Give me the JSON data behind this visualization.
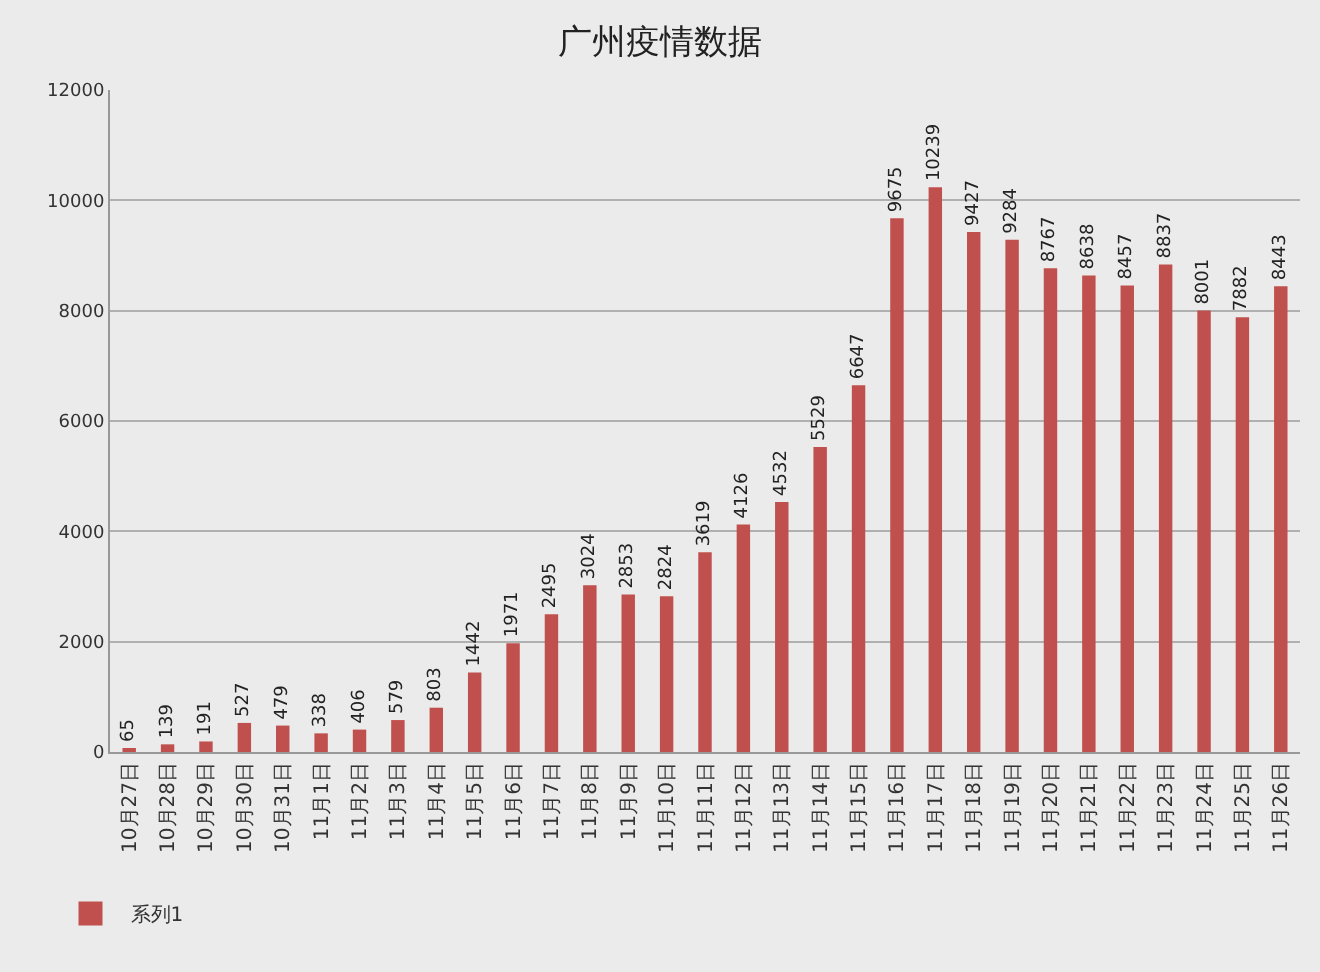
{
  "chart_data": {
    "type": "bar",
    "title": "广州疫情数据",
    "categories": [
      "10月27日",
      "10月28日",
      "10月29日",
      "10月30日",
      "10月31日",
      "11月1日",
      "11月2日",
      "11月3日",
      "11月4日",
      "11月5日",
      "11月6日",
      "11月7日",
      "11月8日",
      "11月9日",
      "11月10日",
      "11月11日",
      "11月12日",
      "11月13日",
      "11月14日",
      "11月15日",
      "11月16日",
      "11月17日",
      "11月18日",
      "11月19日",
      "11月20日",
      "11月21日",
      "11月22日",
      "11月23日",
      "11月24日",
      "11月25日",
      "11月26日"
    ],
    "series": [
      {
        "name": "系列1",
        "color": "#c0504d",
        "values": [
          65,
          139,
          191,
          527,
          479,
          338,
          406,
          579,
          803,
          1442,
          1971,
          2495,
          3024,
          2853,
          2824,
          3619,
          4126,
          4532,
          5529,
          6647,
          9675,
          10239,
          9427,
          9284,
          8767,
          8638,
          8457,
          8837,
          8001,
          7882,
          8443
        ]
      }
    ],
    "ylim": [
      0,
      12000
    ],
    "yticks": [
      0,
      2000,
      4000,
      6000,
      8000,
      10000,
      12000
    ],
    "grid": "y",
    "data_labels": true,
    "legend": "bottom left"
  }
}
